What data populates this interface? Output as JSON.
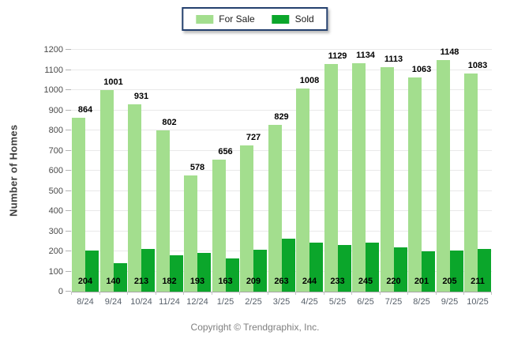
{
  "legend": {
    "for_sale_label": "For Sale",
    "sold_label": "Sold"
  },
  "y_axis_title": "Number of Homes",
  "footer_text": "Copyright © Trendgraphix, Inc.",
  "colors": {
    "for_sale": "#a3de8e",
    "sold": "#0ba62b",
    "legend_border": "#24406e",
    "gridline": "#e9e9e9",
    "axis_line": "#a6a6a6",
    "value_label": "#000000",
    "x_label": "#57606a",
    "y_label": "#4a4a4a",
    "footer": "#7f7f7f"
  },
  "chart_data": {
    "type": "bar",
    "title": "",
    "xlabel": "",
    "ylabel": "Number of Homes",
    "categories": [
      "8/24",
      "9/24",
      "10/24",
      "11/24",
      "12/24",
      "1/25",
      "2/25",
      "3/25",
      "4/25",
      "5/25",
      "6/25",
      "7/25",
      "8/25",
      "9/25",
      "10/25"
    ],
    "series": [
      {
        "name": "For Sale",
        "color": "#a3de8e",
        "values": [
          864,
          1001,
          931,
          802,
          578,
          656,
          727,
          829,
          1008,
          1129,
          1134,
          1113,
          1063,
          1148,
          1083
        ]
      },
      {
        "name": "Sold",
        "color": "#0ba62b",
        "values": [
          204,
          140,
          213,
          182,
          193,
          163,
          209,
          263,
          244,
          233,
          245,
          220,
          201,
          205,
          211
        ]
      }
    ],
    "ylim": [
      0,
      1200
    ],
    "yticks": [
      0,
      100,
      200,
      300,
      400,
      500,
      600,
      700,
      800,
      900,
      1000,
      1100,
      1200
    ],
    "grid": "horizontal",
    "legend_position": "top-center",
    "value_labels": "above-for-sale-bars-and-inside-bottom-for-sold"
  }
}
